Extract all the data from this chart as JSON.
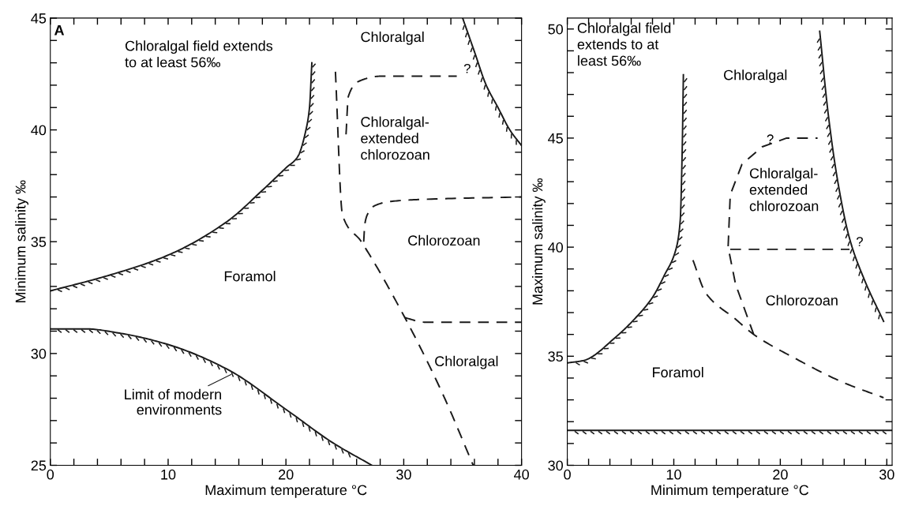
{
  "chart_data": [
    {
      "type": "line",
      "xlabel": "Maximum temperature °C",
      "ylabel": "Minimum salinity ‰",
      "xlim": [
        0,
        40
      ],
      "ylim": [
        25,
        45
      ],
      "xticks": [
        0,
        {
          "value": 2,
          "label": null
        },
        {
          "value": 4,
          "label": null
        },
        {
          "value": 6,
          "label": null
        },
        {
          "value": 8,
          "label": null
        },
        10,
        {
          "value": 12,
          "label": null
        },
        {
          "value": 14,
          "label": null
        },
        {
          "value": 16,
          "label": null
        },
        {
          "value": 18,
          "label": null
        },
        20,
        {
          "value": 22,
          "label": null
        },
        {
          "value": 24,
          "label": null
        },
        {
          "value": 26,
          "label": null
        },
        {
          "value": 28,
          "label": null
        },
        30,
        {
          "value": 32,
          "label": null
        },
        {
          "value": 34,
          "label": null
        },
        {
          "value": 36,
          "label": null
        },
        {
          "value": 38,
          "label": null
        },
        40
      ],
      "yticks": [
        25,
        {
          "value": 26,
          "label": null
        },
        {
          "value": 27,
          "label": null
        },
        {
          "value": 28,
          "label": null
        },
        {
          "value": 29,
          "label": null
        },
        30,
        {
          "value": 31,
          "label": null
        },
        {
          "value": 32,
          "label": null
        },
        {
          "value": 33,
          "label": null
        },
        {
          "value": 34,
          "label": null
        },
        35,
        {
          "value": 36,
          "label": null
        },
        {
          "value": 37,
          "label": null
        },
        {
          "value": 38,
          "label": null
        },
        {
          "value": 39,
          "label": null
        },
        40,
        {
          "value": 41,
          "label": null
        },
        {
          "value": 42,
          "label": null
        },
        {
          "value": 43,
          "label": null
        },
        {
          "value": 44,
          "label": null
        },
        45
      ],
      "grid": false,
      "legend": false,
      "series": [
        {
          "color": "#1a1a1a",
          "line_style": "solid",
          "x": [
            0,
            5,
            10,
            15,
            18,
            20,
            21,
            21.7,
            22,
            22.2
          ],
          "values": [
            32.8,
            33.5,
            34.4,
            35.9,
            37.3,
            38.3,
            38.8,
            40,
            41,
            43
          ]
        },
        {
          "color": "#1a1a1a",
          "line_style": "solid",
          "x": [
            0,
            3,
            6,
            10,
            15,
            20,
            24,
            27.3
          ],
          "values": [
            31.1,
            31.1,
            30.9,
            30.4,
            29.3,
            27.5,
            26,
            25
          ]
        },
        {
          "color": "#1a1a1a",
          "line_style": "solid",
          "x": [
            35,
            36,
            37,
            38,
            39,
            40
          ],
          "values": [
            45,
            43.5,
            42,
            41,
            40,
            39.3
          ]
        },
        {
          "color": "#1a1a1a",
          "line_style": "dashed",
          "x": [
            24.2,
            24.8,
            26.4,
            30.1,
            33.3,
            35.9
          ],
          "values": [
            42.6,
            36.2,
            35,
            31.6,
            28.2,
            25
          ]
        },
        {
          "color": "#1a1a1a",
          "line_style": "dashed",
          "x": [
            25.1,
            25.3,
            26.3,
            28,
            34.5
          ],
          "values": [
            39.8,
            41.5,
            42.2,
            42.4,
            42.4
          ]
        },
        {
          "color": "#1a1a1a",
          "line_style": "dashed",
          "x": [
            26.6,
            26.7,
            27,
            27.5,
            28.9,
            32,
            40
          ],
          "values": [
            35,
            35.8,
            36.3,
            36.6,
            36.8,
            36.9,
            37
          ]
        },
        {
          "color": "#1a1a1a",
          "line_style": "dashed",
          "x": [
            30.1,
            31.8,
            40
          ],
          "values": [
            31.6,
            31.4,
            31.4
          ]
        }
      ],
      "annotations": [
        "A",
        "Chloralgal field extends\nto at least 56‰",
        "Chloralgal",
        "Chloralgal-\nextended\nchlorozoan",
        "Chlorozoan",
        "Foramol",
        "Chloralgal",
        {
          "text": "?",
          "x": 34.8,
          "y": 42.4
        },
        {
          "text": "Limit of modern\nenvironments",
          "x": 15.5,
          "y": 29.1
        }
      ]
    },
    {
      "type": "line",
      "xlabel": "Minimum temperature °C",
      "ylabel": "Maximum salinity ‰",
      "xlim": [
        0,
        30.5
      ],
      "ylim": [
        30,
        50.5
      ],
      "xticks": [
        0,
        {
          "value": 2,
          "label": null
        },
        {
          "value": 4,
          "label": null
        },
        {
          "value": 6,
          "label": null
        },
        {
          "value": 8,
          "label": null
        },
        10,
        {
          "value": 12,
          "label": null
        },
        {
          "value": 14,
          "label": null
        },
        {
          "value": 16,
          "label": null
        },
        {
          "value": 18,
          "label": null
        },
        20,
        {
          "value": 22,
          "label": null
        },
        {
          "value": 24,
          "label": null
        },
        {
          "value": 26,
          "label": null
        },
        {
          "value": 28,
          "label": null
        },
        30
      ],
      "yticks": [
        30,
        {
          "value": 31,
          "label": null
        },
        {
          "value": 32,
          "label": null
        },
        {
          "value": 33,
          "label": null
        },
        {
          "value": 34,
          "label": null
        },
        35,
        {
          "value": 36,
          "label": null
        },
        {
          "value": 37,
          "label": null
        },
        {
          "value": 38,
          "label": null
        },
        {
          "value": 39,
          "label": null
        },
        40,
        {
          "value": 41,
          "label": null
        },
        {
          "value": 42,
          "label": null
        },
        {
          "value": 43,
          "label": null
        },
        {
          "value": 44,
          "label": null
        },
        45,
        {
          "value": 46,
          "label": null
        },
        {
          "value": 47,
          "label": null
        },
        {
          "value": 48,
          "label": null
        },
        {
          "value": 49,
          "label": null
        },
        50
      ],
      "grid": false,
      "legend": false,
      "series": [
        {
          "color": "#1a1a1a",
          "line_style": "solid",
          "x": [
            0.1,
            1.5,
            4.6,
            6.3,
            8,
            9.1,
            10.2,
            10.6,
            10.8,
            10.9
          ],
          "values": [
            34.7,
            34.8,
            35.9,
            36.7,
            37.7,
            38.7,
            39.9,
            41.2,
            44.7,
            47.9
          ]
        },
        {
          "color": "#1a1a1a",
          "line_style": "solid",
          "x": [
            23.7,
            24.5,
            25.4,
            26.5,
            27.9,
            29.7
          ],
          "values": [
            49.9,
            46.1,
            43,
            40.4,
            38.5,
            36.6
          ]
        },
        {
          "color": "#1a1a1a",
          "line_style": "solid",
          "x": [
            0,
            30.5
          ],
          "values": [
            31.6,
            31.6
          ]
        },
        {
          "color": "#1a1a1a",
          "line_style": "dashed",
          "x": [
            11.8,
            13,
            15.8,
            17.5,
            21.4,
            25.9,
            29.7
          ],
          "values": [
            39.4,
            37.9,
            36.7,
            36,
            34.9,
            33.8,
            33.1
          ]
        },
        {
          "color": "#1a1a1a",
          "line_style": "dashed",
          "x": [
            17.5,
            15.8,
            15.1,
            15.3,
            16.4,
            18.3,
            20.6,
            23.5
          ],
          "values": [
            36,
            38.3,
            40,
            42.4,
            43.8,
            44.6,
            45,
            45
          ]
        },
        {
          "color": "#1a1a1a",
          "line_style": "dashed",
          "x": [
            15.3,
            26.5
          ],
          "values": [
            39.9,
            39.9
          ]
        }
      ],
      "annotations": [
        "Chloralgal field\nextends to at\nleast 56‰",
        "Chloralgal",
        "Chloralgal-\nextended\nchlorozoan",
        "Chlorozoan",
        "Foramol",
        {
          "text": "?",
          "x": 18.4,
          "y": 44.6
        },
        {
          "text": "?",
          "x": 26.8,
          "y": 39.9
        }
      ]
    }
  ]
}
